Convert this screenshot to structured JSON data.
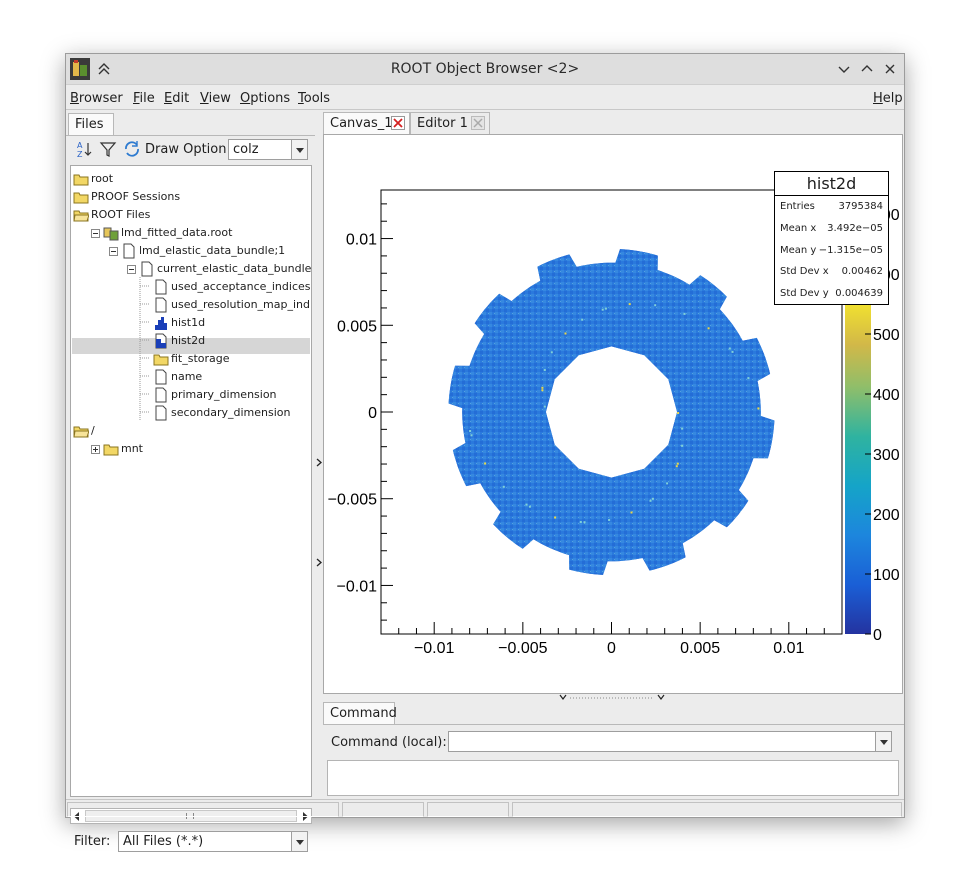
{
  "window": {
    "title": "ROOT Object Browser <2>"
  },
  "menu": {
    "items": [
      "Browser",
      "File",
      "Edit",
      "View",
      "Options",
      "Tools"
    ],
    "help": "Help"
  },
  "left_panel": {
    "tab": "Files",
    "draw_option_label": "Draw Option:",
    "draw_option_value": "colz",
    "tree": [
      {
        "label": "root",
        "icon": "folder-icon"
      },
      {
        "label": "PROOF Sessions",
        "icon": "folder-icon"
      },
      {
        "label": "ROOT Files",
        "icon": "folder-open-icon"
      },
      {
        "label": "lmd_fitted_data.root",
        "icon": "root-file-icon"
      },
      {
        "label": "lmd_elastic_data_bundle;1",
        "icon": "document-icon"
      },
      {
        "label": "current_elastic_data_bundle",
        "icon": "document-icon"
      },
      {
        "label": "used_acceptance_indices",
        "icon": "document-icon"
      },
      {
        "label": "used_resolution_map_indices",
        "icon": "document-icon"
      },
      {
        "label": "hist1d",
        "icon": "histogram-1d-icon"
      },
      {
        "label": "hist2d",
        "icon": "histogram-2d-icon"
      },
      {
        "label": "fit_storage",
        "icon": "folder-icon"
      },
      {
        "label": "name",
        "icon": "document-icon"
      },
      {
        "label": "primary_dimension",
        "icon": "document-icon"
      },
      {
        "label": "secondary_dimension",
        "icon": "document-icon"
      },
      {
        "label": "/",
        "icon": "folder-open-icon"
      },
      {
        "label": "mnt",
        "icon": "folder-icon"
      }
    ],
    "selected_item": "hist2d",
    "filter_label": "Filter:",
    "filter_value": "All Files (*.*)"
  },
  "tabs": {
    "canvas": "Canvas_1",
    "editor": "Editor 1"
  },
  "command": {
    "tab": "Command",
    "label": "Command (local):",
    "value": ""
  },
  "stats_box": {
    "title": "hist2d",
    "rows": [
      {
        "key": "Entries",
        "value": "3795384"
      },
      {
        "key": "Mean x",
        "value": "3.492e−05"
      },
      {
        "key": "Mean y",
        "value": "−1.315e−05"
      },
      {
        "key": "Std Dev x",
        "value": "0.00462"
      },
      {
        "key": "Std Dev y",
        "value": "0.004639"
      }
    ]
  },
  "chart_data": {
    "type": "heatmap",
    "title": "",
    "xlabel": "",
    "ylabel": "",
    "x_ticks": [
      "−0.01",
      "−0.005",
      "0",
      "0.005",
      "0.01"
    ],
    "y_ticks": [
      "−0.01",
      "−0.005",
      "0",
      "0.005",
      "0.01"
    ],
    "xlim": [
      -0.013,
      0.013
    ],
    "ylim": [
      -0.0128,
      0.0128
    ],
    "z_ticks": [
      "0",
      "100",
      "200",
      "300",
      "400",
      "500",
      "600",
      "700"
    ],
    "palette": "kBird",
    "shape": "annulus with 12 outer notches",
    "inner_radius": 0.0037,
    "outer_radius": 0.0092,
    "typical_value": 100
  },
  "colors": {
    "heat_low": "#1f5ccc",
    "heat_mid": "#2f8fe0",
    "heat_high": "#e8d84a"
  }
}
